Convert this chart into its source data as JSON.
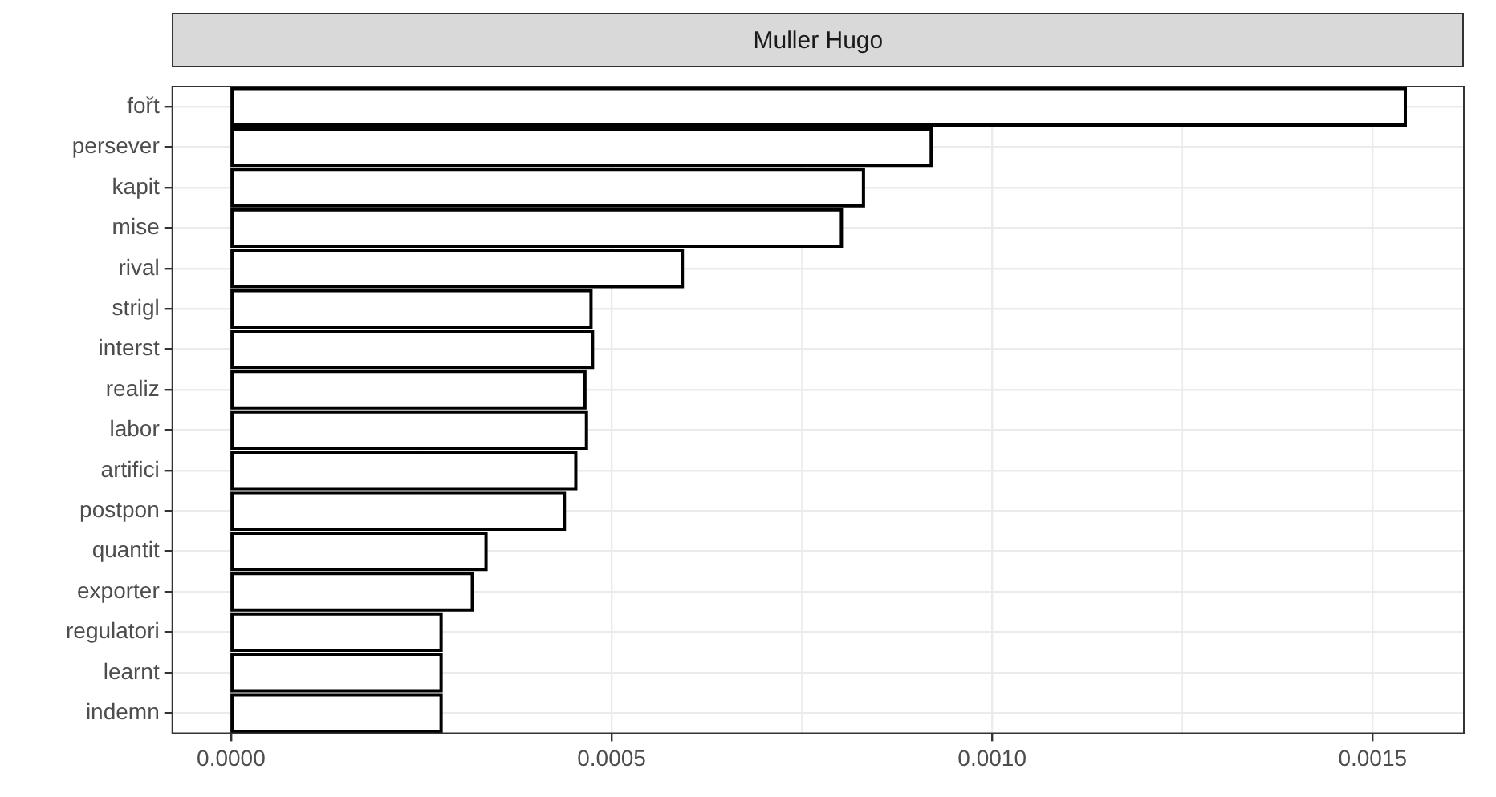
{
  "chart_data": {
    "type": "bar",
    "orientation": "horizontal",
    "title": "Muller Hugo",
    "categories": [
      "fořt",
      "persever",
      "kapit",
      "mise",
      "rival",
      "strigl",
      "interst",
      "realiz",
      "labor",
      "artifici",
      "postpon",
      "quantit",
      "exporter",
      "regulatori",
      "learnt",
      "indemn"
    ],
    "values": [
      0.001543,
      0.00092,
      0.000831,
      0.000802,
      0.000593,
      0.000473,
      0.000475,
      0.000465,
      0.000467,
      0.000453,
      0.000438,
      0.000335,
      0.000317,
      0.000276,
      0.000276,
      0.000276
    ],
    "color": "#ffffff",
    "xlim": [
      -7.72e-05,
      0.00162
    ],
    "xticks": [
      {
        "value": 0,
        "label": "0.0000"
      },
      {
        "value": 0.0005,
        "label": "0.0005"
      },
      {
        "value": 0.001,
        "label": "0.0010"
      },
      {
        "value": 0.0015,
        "label": "0.0015"
      }
    ],
    "grid": true
  }
}
